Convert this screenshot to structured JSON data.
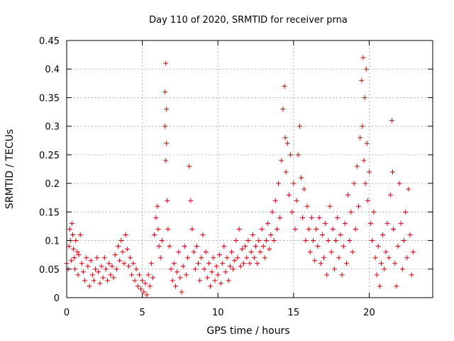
{
  "chart_data": {
    "type": "scatter",
    "title": "Day 110 of 2020, SRMTID for receiver prna",
    "xlabel": "GPS time / hours",
    "ylabel": "SRMTID / TECUs",
    "xlim": [
      0,
      24.2
    ],
    "ylim": [
      0,
      0.45
    ],
    "xticks": [
      0,
      5,
      10,
      15,
      20
    ],
    "xtick_labels": [
      "0",
      "5",
      "10",
      "15",
      "20"
    ],
    "yticks": [
      0,
      0.05,
      0.1,
      0.15,
      0.2,
      0.25,
      0.3,
      0.35,
      0.4,
      0.45
    ],
    "ytick_labels": [
      "0",
      "0.05",
      "0.1",
      "0.15",
      "0.2",
      "0.25",
      "0.3",
      "0.35",
      "0.4",
      "0.45"
    ],
    "grid": true,
    "marker": "+",
    "marker_color": "#e00000",
    "series": [
      {
        "name": "SRMTID",
        "points": [
          [
            0.0,
            0.06
          ],
          [
            0.1,
            0.05
          ],
          [
            0.15,
            0.09
          ],
          [
            0.2,
            0.12
          ],
          [
            0.25,
            0.1
          ],
          [
            0.3,
            0.065
          ],
          [
            0.35,
            0.13
          ],
          [
            0.4,
            0.11
          ],
          [
            0.45,
            0.085
          ],
          [
            0.5,
            0.07
          ],
          [
            0.55,
            0.05
          ],
          [
            0.6,
            0.1
          ],
          [
            0.7,
            0.08
          ],
          [
            0.75,
            0.04
          ],
          [
            0.8,
            0.075
          ],
          [
            0.9,
            0.11
          ],
          [
            1.0,
            0.06
          ],
          [
            1.1,
            0.045
          ],
          [
            1.2,
            0.03
          ],
          [
            1.3,
            0.07
          ],
          [
            1.4,
            0.055
          ],
          [
            1.5,
            0.02
          ],
          [
            1.6,
            0.065
          ],
          [
            1.7,
            0.04
          ],
          [
            1.8,
            0.03
          ],
          [
            1.9,
            0.05
          ],
          [
            2.0,
            0.07
          ],
          [
            2.1,
            0.045
          ],
          [
            2.2,
            0.025
          ],
          [
            2.3,
            0.055
          ],
          [
            2.4,
            0.035
          ],
          [
            2.5,
            0.07
          ],
          [
            2.6,
            0.05
          ],
          [
            2.7,
            0.03
          ],
          [
            2.8,
            0.06
          ],
          [
            2.9,
            0.04
          ],
          [
            3.0,
            0.055
          ],
          [
            3.1,
            0.035
          ],
          [
            3.2,
            0.075
          ],
          [
            3.3,
            0.05
          ],
          [
            3.4,
            0.09
          ],
          [
            3.5,
            0.065
          ],
          [
            3.6,
            0.1
          ],
          [
            3.7,
            0.08
          ],
          [
            3.8,
            0.06
          ],
          [
            3.9,
            0.11
          ],
          [
            4.0,
            0.085
          ],
          [
            4.1,
            0.055
          ],
          [
            4.2,
            0.07
          ],
          [
            4.3,
            0.04
          ],
          [
            4.4,
            0.06
          ],
          [
            4.5,
            0.03
          ],
          [
            4.6,
            0.05
          ],
          [
            4.7,
            0.02
          ],
          [
            4.8,
            0.04
          ],
          [
            4.9,
            0.015
          ],
          [
            5.0,
            0.03
          ],
          [
            5.1,
            0.01
          ],
          [
            5.2,
            0.025
          ],
          [
            5.3,
            0.005
          ],
          [
            5.4,
            0.04
          ],
          [
            5.5,
            0.02
          ],
          [
            5.6,
            0.06
          ],
          [
            5.7,
            0.035
          ],
          [
            5.8,
            0.11
          ],
          [
            5.9,
            0.14
          ],
          [
            6.0,
            0.16
          ],
          [
            6.05,
            0.12
          ],
          [
            6.1,
            0.09
          ],
          [
            6.2,
            0.07
          ],
          [
            6.3,
            0.1
          ],
          [
            6.5,
            0.36
          ],
          [
            6.5,
            0.3
          ],
          [
            6.55,
            0.41
          ],
          [
            6.55,
            0.24
          ],
          [
            6.6,
            0.33
          ],
          [
            6.6,
            0.27
          ],
          [
            6.65,
            0.17
          ],
          [
            6.7,
            0.12
          ],
          [
            6.8,
            0.09
          ],
          [
            6.9,
            0.05
          ],
          [
            7.0,
            0.03
          ],
          [
            7.1,
            0.06
          ],
          [
            7.2,
            0.02
          ],
          [
            7.3,
            0.045
          ],
          [
            7.4,
            0.08
          ],
          [
            7.5,
            0.035
          ],
          [
            7.6,
            0.01
          ],
          [
            7.7,
            0.055
          ],
          [
            7.8,
            0.09
          ],
          [
            7.9,
            0.04
          ],
          [
            8.0,
            0.07
          ],
          [
            8.1,
            0.23
          ],
          [
            8.2,
            0.17
          ],
          [
            8.3,
            0.12
          ],
          [
            8.4,
            0.08
          ],
          [
            8.5,
            0.05
          ],
          [
            8.6,
            0.09
          ],
          [
            8.7,
            0.06
          ],
          [
            8.8,
            0.03
          ],
          [
            8.9,
            0.07
          ],
          [
            9.0,
            0.11
          ],
          [
            9.1,
            0.05
          ],
          [
            9.2,
            0.08
          ],
          [
            9.3,
            0.035
          ],
          [
            9.4,
            0.06
          ],
          [
            9.5,
            0.02
          ],
          [
            9.6,
            0.045
          ],
          [
            9.7,
            0.07
          ],
          [
            9.8,
            0.03
          ],
          [
            9.9,
            0.055
          ],
          [
            10.0,
            0.04
          ],
          [
            10.1,
            0.075
          ],
          [
            10.2,
            0.025
          ],
          [
            10.3,
            0.06
          ],
          [
            10.4,
            0.09
          ],
          [
            10.5,
            0.045
          ],
          [
            10.6,
            0.07
          ],
          [
            10.7,
            0.03
          ],
          [
            10.8,
            0.055
          ],
          [
            10.9,
            0.08
          ],
          [
            11.0,
            0.05
          ],
          [
            11.1,
            0.065
          ],
          [
            11.2,
            0.1
          ],
          [
            11.3,
            0.07
          ],
          [
            11.4,
            0.12
          ],
          [
            11.5,
            0.055
          ],
          [
            11.6,
            0.085
          ],
          [
            11.7,
            0.06
          ],
          [
            11.8,
            0.09
          ],
          [
            11.9,
            0.07
          ],
          [
            12.0,
            0.1
          ],
          [
            12.1,
            0.06
          ],
          [
            12.2,
            0.08
          ],
          [
            12.3,
            0.11
          ],
          [
            12.4,
            0.07
          ],
          [
            12.5,
            0.09
          ],
          [
            12.6,
            0.06
          ],
          [
            12.7,
            0.1
          ],
          [
            12.8,
            0.08
          ],
          [
            12.9,
            0.12
          ],
          [
            13.0,
            0.09
          ],
          [
            13.1,
            0.07
          ],
          [
            13.2,
            0.1
          ],
          [
            13.3,
            0.13
          ],
          [
            13.4,
            0.085
          ],
          [
            13.5,
            0.11
          ],
          [
            13.6,
            0.15
          ],
          [
            13.7,
            0.1
          ],
          [
            13.8,
            0.17
          ],
          [
            13.9,
            0.12
          ],
          [
            14.0,
            0.2
          ],
          [
            14.1,
            0.14
          ],
          [
            14.2,
            0.24
          ],
          [
            14.3,
            0.33
          ],
          [
            14.4,
            0.37
          ],
          [
            14.45,
            0.28
          ],
          [
            14.5,
            0.22
          ],
          [
            14.6,
            0.27
          ],
          [
            14.7,
            0.18
          ],
          [
            14.8,
            0.25
          ],
          [
            14.9,
            0.15
          ],
          [
            15.0,
            0.2
          ],
          [
            15.1,
            0.12
          ],
          [
            15.2,
            0.17
          ],
          [
            15.3,
            0.25
          ],
          [
            15.4,
            0.3
          ],
          [
            15.5,
            0.21
          ],
          [
            15.6,
            0.14
          ],
          [
            15.7,
            0.19
          ],
          [
            15.8,
            0.1
          ],
          [
            15.9,
            0.16
          ],
          [
            16.0,
            0.12
          ],
          [
            16.1,
            0.08
          ],
          [
            16.2,
            0.14
          ],
          [
            16.3,
            0.1
          ],
          [
            16.4,
            0.065
          ],
          [
            16.5,
            0.12
          ],
          [
            16.6,
            0.09
          ],
          [
            16.7,
            0.14
          ],
          [
            16.8,
            0.06
          ],
          [
            16.9,
            0.11
          ],
          [
            17.0,
            0.07
          ],
          [
            17.1,
            0.13
          ],
          [
            17.2,
            0.04
          ],
          [
            17.3,
            0.1
          ],
          [
            17.4,
            0.16
          ],
          [
            17.5,
            0.08
          ],
          [
            17.6,
            0.12
          ],
          [
            17.7,
            0.05
          ],
          [
            17.8,
            0.1
          ],
          [
            17.9,
            0.14
          ],
          [
            18.0,
            0.07
          ],
          [
            18.1,
            0.11
          ],
          [
            18.2,
            0.04
          ],
          [
            18.3,
            0.09
          ],
          [
            18.4,
            0.13
          ],
          [
            18.5,
            0.06
          ],
          [
            18.6,
            0.18
          ],
          [
            18.7,
            0.1
          ],
          [
            18.8,
            0.15
          ],
          [
            18.9,
            0.08
          ],
          [
            19.0,
            0.2
          ],
          [
            19.1,
            0.12
          ],
          [
            19.2,
            0.23
          ],
          [
            19.3,
            0.16
          ],
          [
            19.4,
            0.28
          ],
          [
            19.5,
            0.38
          ],
          [
            19.55,
            0.3
          ],
          [
            19.6,
            0.42
          ],
          [
            19.65,
            0.24
          ],
          [
            19.7,
            0.35
          ],
          [
            19.75,
            0.2
          ],
          [
            19.8,
            0.4
          ],
          [
            19.85,
            0.27
          ],
          [
            19.9,
            0.17
          ],
          [
            20.0,
            0.22
          ],
          [
            20.1,
            0.13
          ],
          [
            20.2,
            0.1
          ],
          [
            20.3,
            0.15
          ],
          [
            20.4,
            0.07
          ],
          [
            20.5,
            0.04
          ],
          [
            20.6,
            0.09
          ],
          [
            20.7,
            0.02
          ],
          [
            20.8,
            0.06
          ],
          [
            20.9,
            0.11
          ],
          [
            21.0,
            0.05
          ],
          [
            21.1,
            0.08
          ],
          [
            21.2,
            0.13
          ],
          [
            21.3,
            0.07
          ],
          [
            21.4,
            0.18
          ],
          [
            21.5,
            0.31
          ],
          [
            21.55,
            0.22
          ],
          [
            21.6,
            0.12
          ],
          [
            21.7,
            0.06
          ],
          [
            21.8,
            0.02
          ],
          [
            21.9,
            0.09
          ],
          [
            22.0,
            0.2
          ],
          [
            22.1,
            0.13
          ],
          [
            22.2,
            0.05
          ],
          [
            22.3,
            0.1
          ],
          [
            22.4,
            0.15
          ],
          [
            22.5,
            0.07
          ],
          [
            22.6,
            0.19
          ],
          [
            22.7,
            0.11
          ],
          [
            22.8,
            0.04
          ],
          [
            22.9,
            0.08
          ]
        ]
      }
    ]
  }
}
